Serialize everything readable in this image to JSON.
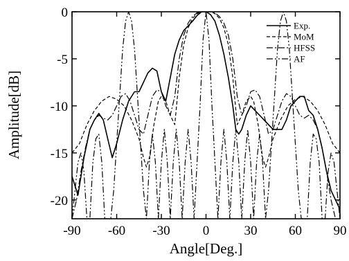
{
  "chart_data": {
    "type": "line",
    "title": "",
    "xlabel": "Angle[Deg.]",
    "ylabel": "Amplitude[dB]",
    "xlim": [
      -90,
      90
    ],
    "ylim": [
      -22,
      0
    ],
    "xticks": [
      -90,
      -60,
      -30,
      0,
      30,
      60,
      90
    ],
    "xtick_labels": [
      "-90",
      "-60",
      "-30",
      "0",
      "30",
      "60",
      "90"
    ],
    "yticks": [
      0,
      -5,
      -10,
      -15,
      -20
    ],
    "ytick_labels": [
      "0",
      "-5",
      "-10",
      "-15",
      "-20"
    ],
    "grid": false,
    "legend_position": "top-right",
    "series": [
      {
        "name": "Exp.",
        "style": "solid",
        "x": [
          -90,
          -86,
          -82,
          -78,
          -75,
          -72,
          -69,
          -66,
          -63,
          -60,
          -56,
          -52,
          -48,
          -45,
          -42,
          -39,
          -36,
          -33,
          -30,
          -27,
          -24,
          -21,
          -18,
          -15,
          -12,
          -9,
          -6,
          -3,
          0,
          3,
          6,
          9,
          12,
          15,
          18,
          20,
          22,
          24,
          27,
          30,
          33,
          36,
          39,
          42,
          45,
          48,
          51,
          54,
          57,
          60,
          63,
          66,
          69,
          72,
          75,
          78,
          81,
          84,
          87,
          90
        ],
        "y": [
          -17.5,
          -19.5,
          -15.5,
          -12.5,
          -11.5,
          -10.8,
          -11.5,
          -13.5,
          -15.5,
          -14,
          -11.5,
          -9.5,
          -8.5,
          -8.5,
          -7.5,
          -6.5,
          -6,
          -6.3,
          -8.5,
          -9.5,
          -7,
          -4.5,
          -3,
          -2,
          -1.5,
          -1,
          -0.4,
          0,
          0,
          -0.3,
          -1,
          -2.5,
          -4.5,
          -7,
          -10,
          -12.5,
          -13,
          -12.5,
          -11,
          -10,
          -10.5,
          -11,
          -11.5,
          -12,
          -12.5,
          -12.5,
          -12.5,
          -11.5,
          -10,
          -9.5,
          -9,
          -9,
          -10.5,
          -11,
          -12.5,
          -14.5,
          -17,
          -19,
          -20,
          -21
        ]
      },
      {
        "name": "MoM",
        "style": "dashed",
        "x": [
          -90,
          -85,
          -80,
          -75,
          -70,
          -65,
          -60,
          -55,
          -50,
          -45,
          -42,
          -40,
          -38,
          -35,
          -32,
          -30,
          -27,
          -24,
          -21,
          -18,
          -15,
          -12,
          -9,
          -6,
          -3,
          0,
          3,
          6,
          9,
          12,
          15,
          18,
          21,
          24,
          27,
          30,
          32,
          35,
          38,
          40,
          42,
          45,
          50,
          55,
          60,
          65,
          70,
          75,
          80,
          85,
          90
        ],
        "y": [
          -15,
          -14,
          -12,
          -10.5,
          -9.5,
          -9,
          -9.3,
          -10,
          -11.5,
          -13.5,
          -15.5,
          -16.5,
          -15.5,
          -12,
          -9.5,
          -9,
          -9.5,
          -11,
          -12,
          -7,
          -3.5,
          -1.7,
          -0.7,
          -0.2,
          0,
          0,
          0,
          -0.2,
          -0.7,
          -1.7,
          -3.5,
          -7,
          -12,
          -11,
          -9.5,
          -9,
          -9.5,
          -12,
          -15.5,
          -16.5,
          -15.5,
          -13.5,
          -11.5,
          -10,
          -9.3,
          -9,
          -9.5,
          -10.5,
          -12,
          -14,
          -15
        ]
      },
      {
        "name": "HFSS",
        "style": "dashdot",
        "x": [
          -90,
          -87,
          -84,
          -81,
          -78,
          -75,
          -72,
          -69,
          -66,
          -63,
          -60,
          -57,
          -54,
          -51,
          -48,
          -45,
          -42,
          -39,
          -36,
          -33,
          -30,
          -27,
          -24,
          -21,
          -18,
          -15,
          -12,
          -9,
          -6,
          -3,
          0,
          3,
          6,
          9,
          12,
          15,
          18,
          21,
          24,
          27,
          30,
          33,
          36,
          39,
          42,
          45,
          48,
          51,
          54,
          57,
          60,
          63,
          66,
          69,
          72,
          75,
          78,
          81,
          84,
          87,
          90
        ],
        "y": [
          -22,
          -20,
          -17,
          -14.5,
          -12.5,
          -11.5,
          -11,
          -11.3,
          -11.5,
          -11,
          -10,
          -9,
          -8.7,
          -9.5,
          -11,
          -12.5,
          -13,
          -11,
          -9,
          -8.3,
          -8.5,
          -10,
          -11,
          -9,
          -5,
          -2.5,
          -1.2,
          -0.5,
          -0.1,
          0,
          0,
          0,
          -0.1,
          -0.5,
          -1.2,
          -2.5,
          -5,
          -9,
          -11,
          -10,
          -8.5,
          -8.3,
          -9,
          -11,
          -13,
          -12.5,
          -11,
          -9.5,
          -8.7,
          -9,
          -10,
          -11,
          -11.3,
          -11,
          -11.5,
          -12.5,
          -14.5,
          -17,
          -20,
          -22,
          -22
        ]
      },
      {
        "name": "AF",
        "style": "dashdotdot",
        "x": [
          -90,
          -88,
          -86,
          -84,
          -82,
          -80,
          -78,
          -76,
          -74,
          -72,
          -70,
          -68,
          -66,
          -64,
          -62,
          -60,
          -58,
          -56,
          -54,
          -52,
          -50,
          -48,
          -46,
          -44,
          -42,
          -40,
          -38,
          -36,
          -34,
          -32,
          -30,
          -28,
          -26,
          -24,
          -22,
          -20,
          -18,
          -16,
          -14,
          -12,
          -10,
          -8,
          -6,
          -4,
          -2,
          0,
          2,
          4,
          6,
          8,
          10,
          12,
          14,
          16,
          18,
          20,
          22,
          24,
          26,
          28,
          30,
          32,
          34,
          36,
          38,
          40,
          42,
          44,
          46,
          48,
          50,
          52,
          54,
          56,
          58,
          60,
          62,
          64,
          66,
          68,
          70,
          72,
          74,
          76,
          78,
          80,
          82,
          84,
          86,
          88,
          90
        ],
        "y": [
          -22,
          -19,
          -16,
          -15,
          -17,
          -22,
          -22,
          -16,
          -13.5,
          -13,
          -16,
          -22,
          -22,
          -22,
          -19,
          -14,
          -9,
          -4,
          -1,
          0,
          -1,
          -4,
          -9,
          -14,
          -19,
          -22,
          -16,
          -13,
          -16,
          -22,
          -16,
          -12.5,
          -16,
          -22,
          -16,
          -12.5,
          -16,
          -22,
          -16,
          -12.5,
          -16,
          -22,
          -16,
          -10,
          -3,
          0,
          -3,
          -10,
          -16,
          -22,
          -16,
          -12.5,
          -16,
          -22,
          -16,
          -12.5,
          -16,
          -22,
          -16,
          -12.5,
          -16,
          -22,
          -16,
          -13,
          -16,
          -22,
          -19,
          -14,
          -9,
          -4,
          -1,
          0,
          -1,
          -4,
          -9,
          -14,
          -19,
          -22,
          -22,
          -22,
          -16,
          -13,
          -13.5,
          -16,
          -22,
          -22,
          -17,
          -15,
          -16,
          -19,
          -22
        ]
      }
    ]
  }
}
